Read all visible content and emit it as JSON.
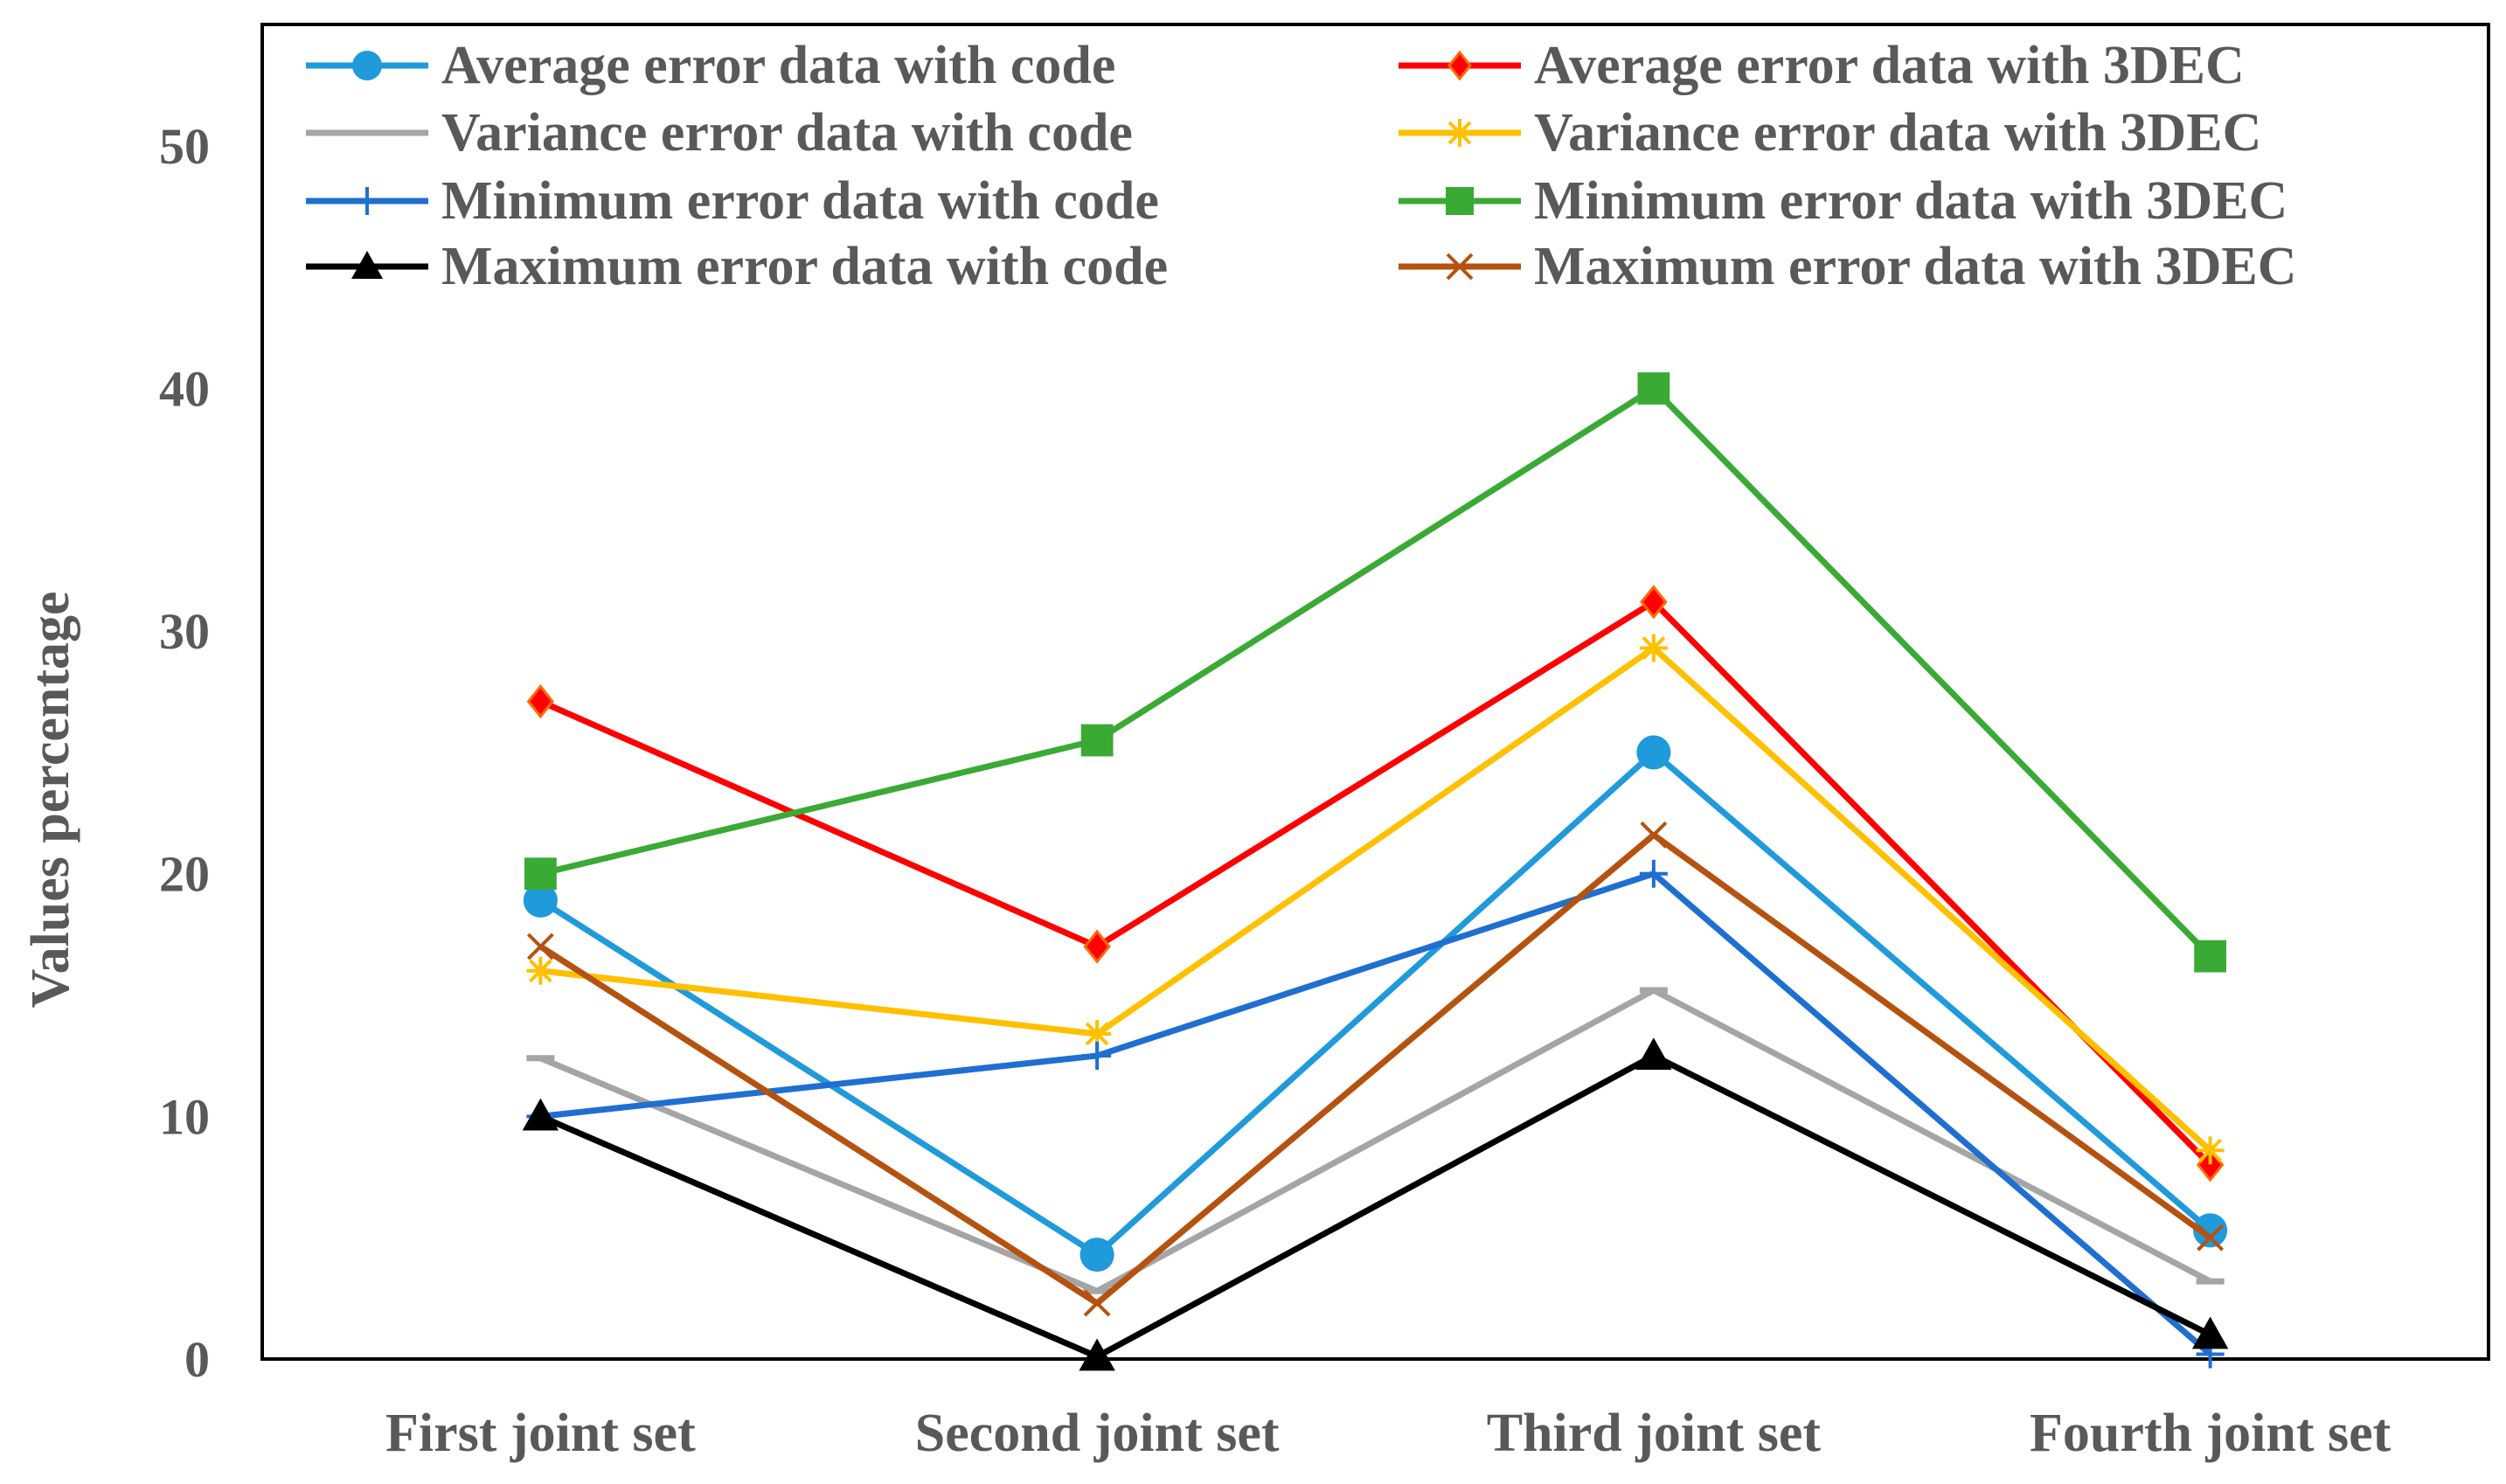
{
  "chart_data": {
    "type": "line",
    "title": "",
    "xlabel": "",
    "ylabel": "Values percentage",
    "ylim": [
      0,
      55
    ],
    "yticks": [
      0,
      10,
      20,
      30,
      40,
      50
    ],
    "grid": false,
    "legend_position": "top",
    "categories": [
      "First joint set",
      "Second joint set",
      "Third joint set",
      "Fourth joint set"
    ],
    "series": [
      {
        "name": "Average error data with code",
        "color": "#1F9ADB",
        "marker": "circle",
        "values": [
          18.9,
          4.3,
          25.0,
          5.3
        ]
      },
      {
        "name": "Average error data with 3DEC",
        "color": "#FF0000",
        "marker": "diamond",
        "values": [
          27.1,
          17.0,
          31.2,
          8.0
        ]
      },
      {
        "name": "Variance error data with code",
        "color": "#A5A5A5",
        "marker": "dash",
        "values": [
          12.4,
          2.8,
          15.2,
          3.2
        ]
      },
      {
        "name": "Variance error data with 3DEC",
        "color": "#FFC000",
        "marker": "asterisk",
        "values": [
          16.0,
          13.4,
          29.3,
          8.6
        ]
      },
      {
        "name": "Minimum error data with code",
        "color": "#1F6FD1",
        "marker": "plus",
        "values": [
          10.0,
          12.5,
          20.0,
          0.2
        ]
      },
      {
        "name": "Minimum error data with 3DEC",
        "color": "#3AAA35",
        "marker": "square",
        "values": [
          20.0,
          25.5,
          40.0,
          16.6
        ]
      },
      {
        "name": "Maximum error data with code",
        "color": "#000000",
        "marker": "triangle",
        "values": [
          10.0,
          0.1,
          12.5,
          1.0
        ]
      },
      {
        "name": "Maximum error data with  3DEC",
        "color": "#B5520F",
        "marker": "x",
        "values": [
          17.0,
          2.3,
          21.6,
          5.0
        ]
      }
    ]
  }
}
